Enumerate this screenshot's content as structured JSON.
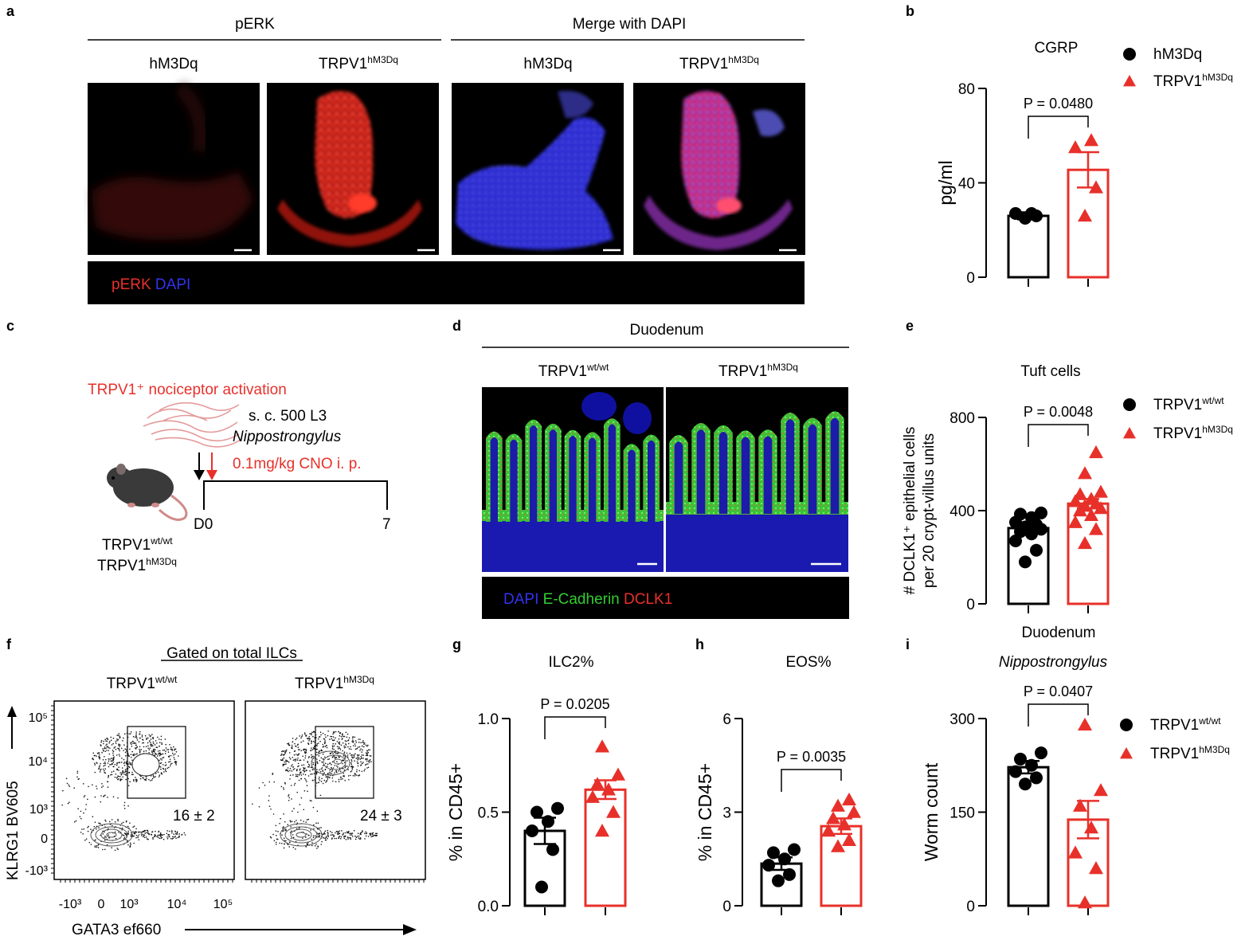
{
  "panel_letters": [
    "a",
    "b",
    "c",
    "d",
    "e",
    "f",
    "g",
    "h",
    "i"
  ],
  "colors": {
    "red": "#e8302a",
    "black": "#000000",
    "blue": "#2b2bdc",
    "green": "#33cc33"
  },
  "panel_a": {
    "group1": "pERK",
    "group2": "Merge with DAPI",
    "labels": [
      "hM3Dq",
      "TRPV1",
      "hM3Dq",
      "TRPV1"
    ],
    "superscripts": [
      "",
      "hM3Dq",
      "",
      "hM3Dq"
    ],
    "legend_red": "pERK",
    "legend_blue": "DAPI"
  },
  "panel_c": {
    "title": "TRPV1⁺ nociceptor activation",
    "infection_line1": "s. c. 500 L3",
    "infection_line2": "Nippostrongylus",
    "treatment": "0.1mg/kg CNO i. p.",
    "day_start": "D0",
    "day_end": "7",
    "genotype1": "TRPV1",
    "genotype1_sup": "wt/wt",
    "genotype2": "TRPV1",
    "genotype2_sup": "hM3Dq"
  },
  "panel_d": {
    "title": "Duodenum",
    "label1": "TRPV1",
    "label1_sup": "wt/wt",
    "label2": "TRPV1",
    "label2_sup": "hM3Dq",
    "legend_dapi": "DAPI",
    "legend_ecad": "E-Cadherin",
    "legend_dclk": "DCLK1"
  },
  "panel_f": {
    "title": "Gated on total ILCs",
    "label1": "TRPV1",
    "label1_sup": "wt/wt",
    "label2": "TRPV1",
    "label2_sup": "hM3Dq",
    "ylabel": "KLRG1 BV605",
    "xlabel": "GATA3 ef660",
    "gate1": "16 ± 2",
    "gate2": "24 ± 3",
    "yticks": [
      "10⁵",
      "10⁴",
      "10³",
      "0",
      "-10³"
    ],
    "xticks": [
      "-10³",
      "0",
      "10³",
      "10⁴",
      "10⁵"
    ]
  },
  "chart_data": [
    {
      "panel": "b",
      "type": "bar",
      "title": "CGRP",
      "ylabel": "pg/ml",
      "ylim": [
        0,
        80
      ],
      "yticks": [
        0,
        40,
        80
      ],
      "pvalue": "P = 0.0480",
      "legend": {
        "placement": "top-right",
        "entries": [
          {
            "label": "hM3Dq",
            "sup": ""
          },
          {
            "label": "TRPV1",
            "sup": "hM3Dq"
          }
        ]
      },
      "groups": [
        {
          "mean": 26,
          "sem": 1.5,
          "points": [
            25,
            26,
            27,
            27
          ]
        },
        {
          "mean": 45.5,
          "sem": 7.5,
          "points": [
            26,
            38,
            55,
            58
          ]
        }
      ]
    },
    {
      "panel": "e",
      "type": "bar",
      "title": "Tuft cells",
      "ylabel": "# DCLK1⁺ epithelial cells",
      "ylabel2": "per 20 crypt-villus units",
      "xlabel": "Duodenum",
      "ylim": [
        0,
        800
      ],
      "yticks": [
        0,
        400,
        800
      ],
      "pvalue": "P = 0.0048",
      "legend": {
        "placement": "top-right",
        "entries": [
          {
            "label": "TRPV1",
            "sup": "wt/wt"
          },
          {
            "label": "TRPV1",
            "sup": "hM3Dq"
          }
        ]
      },
      "groups": [
        {
          "mean": 325,
          "sem": 20,
          "points": [
            180,
            230,
            270,
            300,
            310,
            320,
            330,
            340,
            350,
            370,
            385,
            390
          ]
        },
        {
          "mean": 430,
          "sem": 20,
          "points": [
            260,
            320,
            350,
            380,
            400,
            410,
            420,
            430,
            440,
            450,
            470,
            480,
            560,
            650
          ]
        }
      ]
    },
    {
      "panel": "g",
      "type": "bar",
      "title": "ILC2%",
      "ylabel": "% in CD45+",
      "ylim": [
        0,
        1.0
      ],
      "yticks": [
        "0.0",
        "0.5",
        "1.0"
      ],
      "pvalue": "P = 0.0205",
      "groups": [
        {
          "mean": 0.4,
          "sem": 0.07,
          "points": [
            0.1,
            0.3,
            0.4,
            0.45,
            0.5,
            0.52
          ]
        },
        {
          "mean": 0.62,
          "sem": 0.05,
          "points": [
            0.4,
            0.5,
            0.58,
            0.62,
            0.65,
            0.7,
            0.85
          ]
        }
      ]
    },
    {
      "panel": "h",
      "type": "bar",
      "title": "EOS%",
      "ylabel": "% in CD45+",
      "ylim": [
        0,
        6
      ],
      "yticks": [
        0,
        3,
        6
      ],
      "pvalue": "P = 0.0035",
      "groups": [
        {
          "mean": 1.35,
          "sem": 0.2,
          "points": [
            0.8,
            1.0,
            1.3,
            1.5,
            1.7,
            1.8
          ]
        },
        {
          "mean": 2.55,
          "sem": 0.25,
          "points": [
            1.9,
            2.1,
            2.4,
            2.6,
            2.8,
            3.0,
            3.2,
            3.4
          ]
        }
      ]
    },
    {
      "panel": "i",
      "type": "bar",
      "title": "Nippostrongylus",
      "ylabel": "Worm count",
      "ylim": [
        0,
        300
      ],
      "yticks": [
        0,
        150,
        300
      ],
      "pvalue": "P = 0.0407",
      "legend": {
        "placement": "top-right",
        "entries": [
          {
            "label": "TRPV1",
            "sup": "wt/wt"
          },
          {
            "label": "TRPV1",
            "sup": "hM3Dq"
          }
        ]
      },
      "groups": [
        {
          "mean": 222,
          "sem": 10,
          "points": [
            195,
            205,
            215,
            225,
            235,
            245
          ]
        },
        {
          "mean": 138,
          "sem": 30,
          "points": [
            5,
            60,
            85,
            125,
            160,
            185,
            290
          ]
        }
      ]
    }
  ]
}
